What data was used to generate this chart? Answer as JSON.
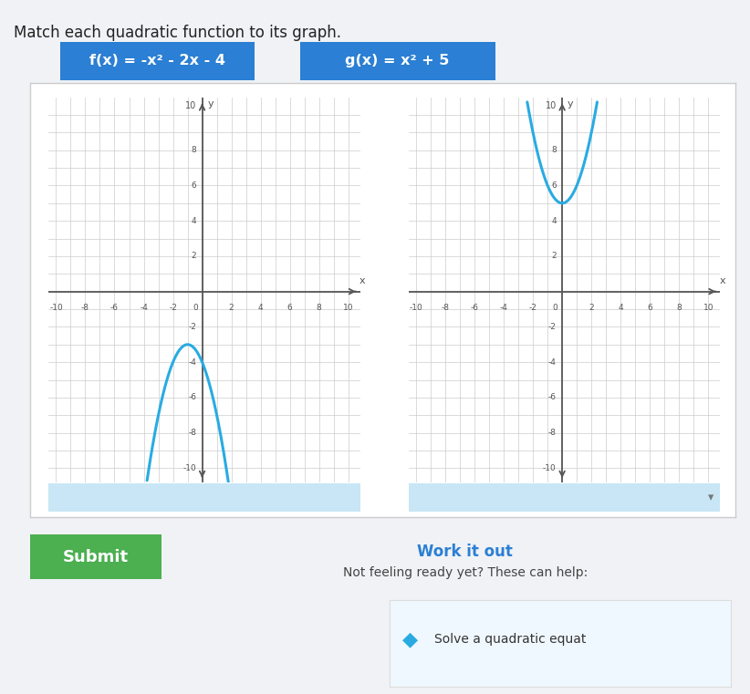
{
  "title": "Match each quadratic function to its graph.",
  "func1_label": "f(x) = -x² - 2x - 4",
  "func2_label": "g(x) = x² + 5",
  "page_bg": "#f0f2f5",
  "white_bg": "#ffffff",
  "header_box_color": "#2B7FD4",
  "header_text_color": "#ffffff",
  "curve_color": "#29ABE2",
  "axis_color": "#555555",
  "grid_color": "#cccccc",
  "grid_minor_color": "#e0e0e0",
  "xlim": [
    -10,
    10
  ],
  "ylim": [
    -10,
    10
  ],
  "submit_color": "#4CAF50",
  "submit_text": "Submit",
  "work_text": "Work it out",
  "help_text": "Not feeling ready yet? These can help:",
  "dropdown_box_color": "#C8E6F5",
  "solve_text": "Solve a quadratic equat",
  "diamond_color": "#29ABE2",
  "container_bg": "#ffffff",
  "container_border": "#cccccc"
}
